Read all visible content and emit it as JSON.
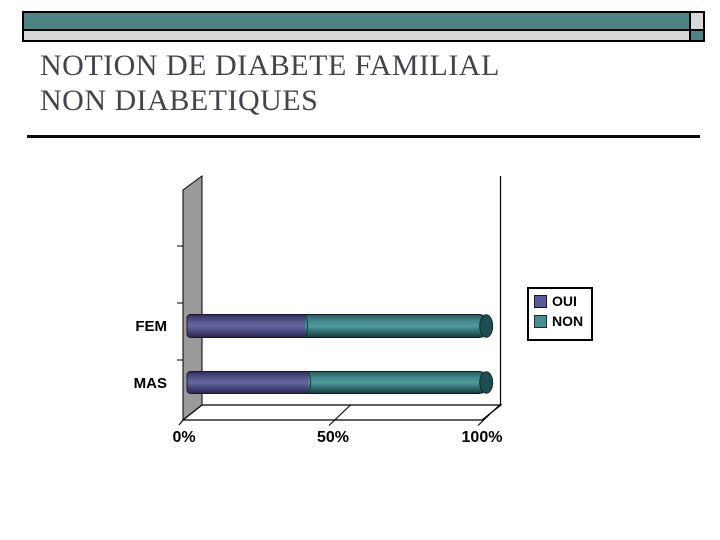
{
  "slide": {
    "title": "NOTION DE DIABETE FAMILIAL\nNON DIABETIQUES",
    "background_color": "#ffffff"
  },
  "header_decoration": {
    "teal_color": "#4e8385",
    "gray_color": "#d8d8d8"
  },
  "chart_data": {
    "type": "bar",
    "subtype": "horizontal-stacked-100pct-3d-cylinder",
    "title": "",
    "categories": [
      "FEM",
      "MAS"
    ],
    "series": [
      {
        "name": "OUI",
        "color": "#5a5a96",
        "gradient": [
          "#2e2e56",
          "#565690",
          "#67679f",
          "#45457a",
          "#272749"
        ],
        "values": [
          40,
          41
        ]
      },
      {
        "name": "NON",
        "color": "#4b8c8f",
        "gradient": [
          "#27595c",
          "#448a8d",
          "#529a9d",
          "#2f6b6e",
          "#16393b"
        ],
        "cap_color": "#1d4d50",
        "values": [
          60,
          59
        ]
      }
    ],
    "x_ticks": [
      "0%",
      "50%",
      "100%"
    ],
    "xlim": [
      0,
      100
    ],
    "unit": "%",
    "legend_position": "right",
    "grid": false,
    "wall_color": "#9a9a9a"
  }
}
